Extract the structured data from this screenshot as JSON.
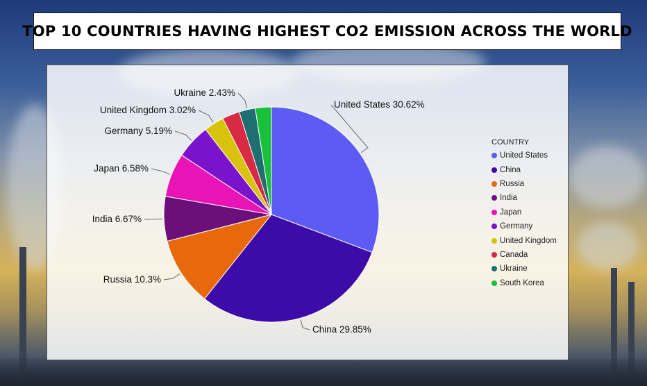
{
  "title": "TOP 10 COUNTRIES HAVING HIGHEST CO2 EMISSION ACROSS THE WORLD",
  "chart_data": {
    "type": "pie",
    "title": "TOP 10 COUNTRIES HAVING HIGHEST CO2 EMISSION ACROSS THE WORLD",
    "legend_title": "COUNTRY",
    "legend_position": "right",
    "slices": [
      {
        "label": "United States",
        "value": 30.62,
        "display": "30.62%",
        "color": "#5c5cf5"
      },
      {
        "label": "China",
        "value": 29.85,
        "display": "29.85%",
        "color": "#3d0ba8"
      },
      {
        "label": "Russia",
        "value": 10.3,
        "display": "10.3%",
        "color": "#e8680c"
      },
      {
        "label": "India",
        "value": 6.67,
        "display": "6.67%",
        "color": "#6b0f7a"
      },
      {
        "label": "Japan",
        "value": 6.58,
        "display": "6.58%",
        "color": "#e914b5"
      },
      {
        "label": "Germany",
        "value": 5.19,
        "display": "5.19%",
        "color": "#7a14cc"
      },
      {
        "label": "United Kingdom",
        "value": 3.02,
        "display": "3.02%",
        "color": "#d8c20c"
      },
      {
        "label": "Canada",
        "value": 2.6,
        "display": "",
        "color": "#d82a44"
      },
      {
        "label": "Ukraine",
        "value": 2.43,
        "display": "2.43%",
        "color": "#1e6e72"
      },
      {
        "label": "South Korea",
        "value": 2.4,
        "display": "",
        "color": "#18c03c"
      }
    ]
  }
}
